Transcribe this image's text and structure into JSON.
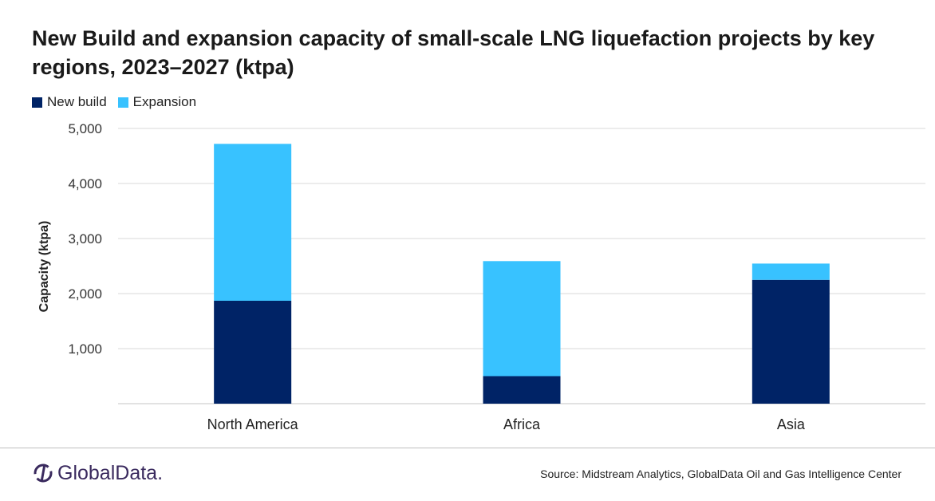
{
  "chart_data": {
    "type": "bar",
    "stacked": true,
    "title": "New Build and expansion capacity of small-scale LNG liquefaction projects by key regions, 2023–2027 (ktpa)",
    "xlabel": "",
    "ylabel": "Capacity  (ktpa)",
    "ylim": [
      0,
      5000
    ],
    "yticks": [
      1000,
      2000,
      3000,
      4000,
      5000
    ],
    "ytick_labels": [
      "1,000",
      "2,000",
      "3,000",
      "4,000",
      "5,000"
    ],
    "grid": true,
    "legend_position": "top-left",
    "categories": [
      "North America",
      "Africa",
      "Asia"
    ],
    "series": [
      {
        "name": "New build",
        "color": "#002366",
        "values": [
          1870,
          500,
          2250
        ]
      },
      {
        "name": "Expansion",
        "color": "#38c2ff",
        "values": [
          2850,
          2090,
          295
        ]
      }
    ]
  },
  "footer": {
    "source": "Source:  Midstream  Analytics, GlobalData Oil and Gas Intelligence Center",
    "logo_text": "GlobalData."
  }
}
